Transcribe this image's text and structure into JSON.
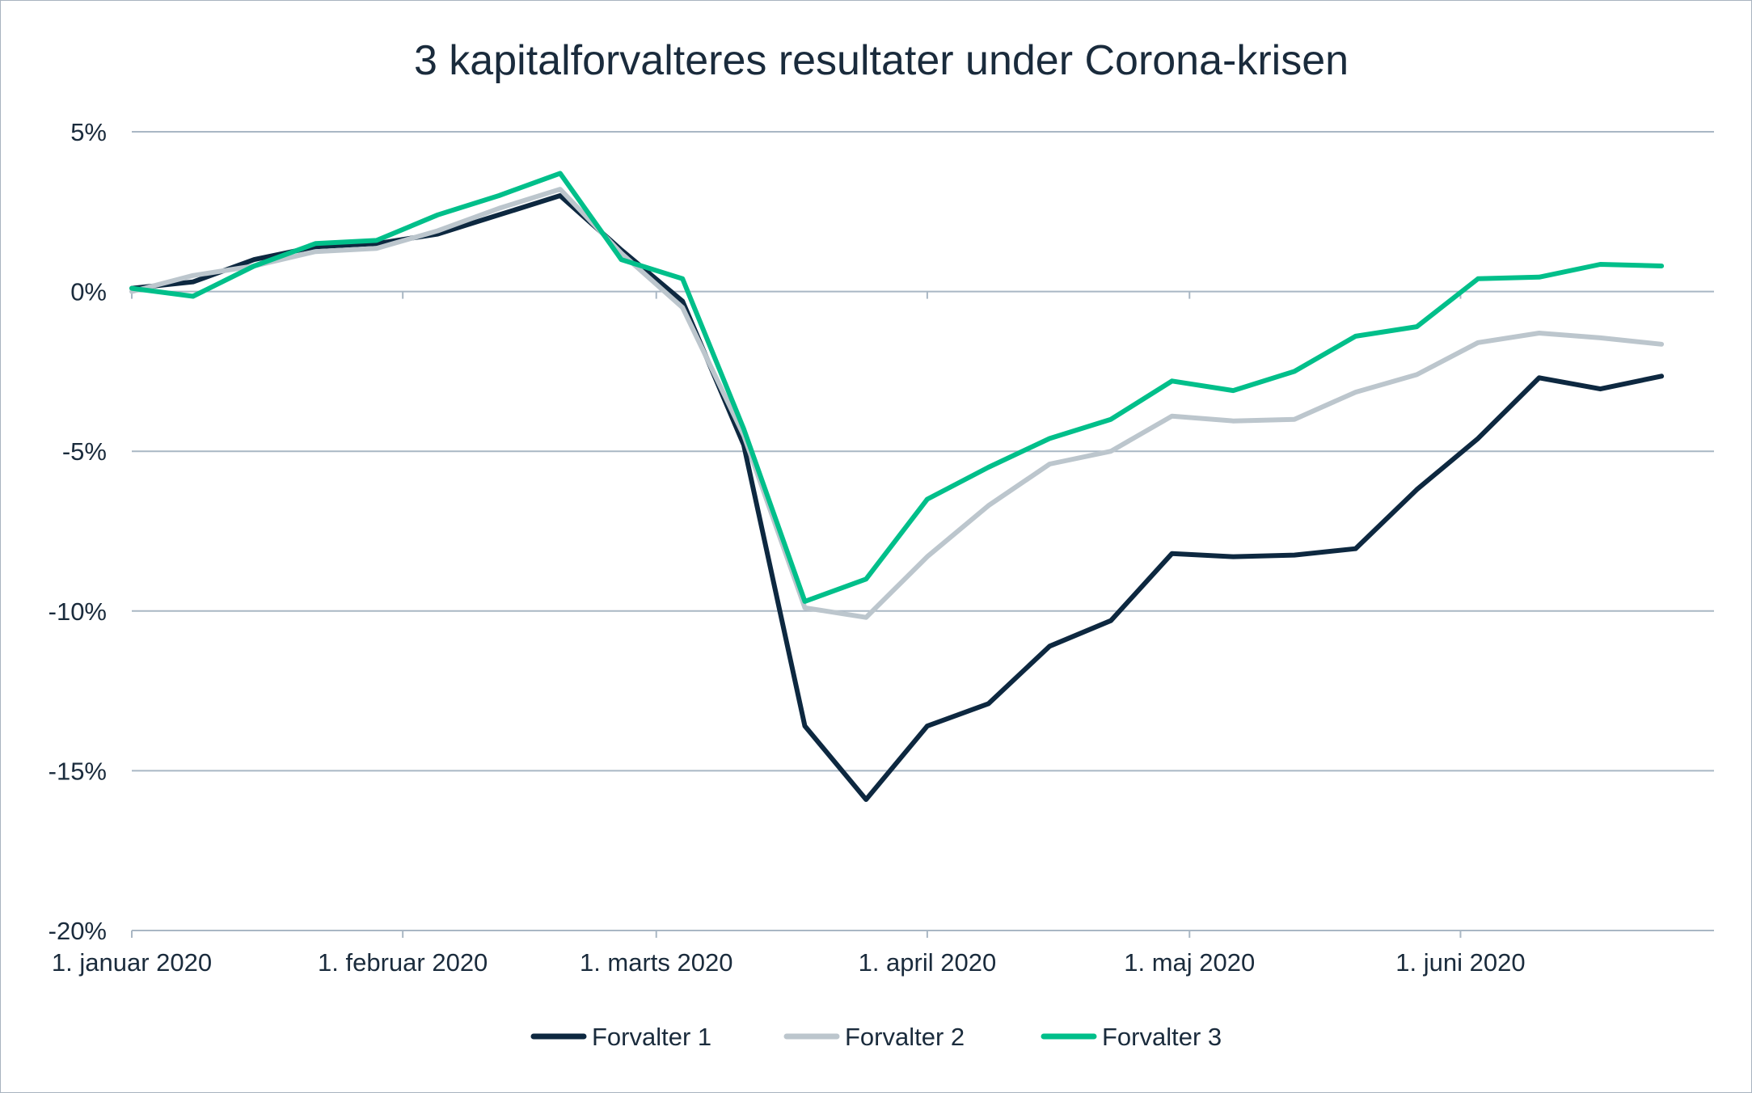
{
  "chart_data": {
    "type": "line",
    "title": "3 kapitalforvalteres resultater under Corona-krisen",
    "xlabel": "",
    "ylabel": "",
    "ylim": [
      -20,
      5
    ],
    "y_ticks": [
      5,
      0,
      -5,
      -10,
      -15,
      -20
    ],
    "y_tick_labels": [
      "5%",
      "0%",
      "-5%",
      "-10%",
      "-15%",
      "-20%"
    ],
    "x_range": [
      "2020-01-01",
      "2020-06-30"
    ],
    "x_ticks": [
      "2020-01-01",
      "2020-02-01",
      "2020-03-01",
      "2020-04-01",
      "2020-05-01",
      "2020-06-01"
    ],
    "x_tick_labels": [
      "1. januar 2020",
      "1. februar 2020",
      "1. marts 2020",
      "1. april 2020",
      "1. maj 2020",
      "1. juni 2020"
    ],
    "x": [
      "2020-01-01",
      "2020-01-08",
      "2020-01-15",
      "2020-01-22",
      "2020-01-29",
      "2020-02-05",
      "2020-02-12",
      "2020-02-19",
      "2020-02-26",
      "2020-03-04",
      "2020-03-11",
      "2020-03-18",
      "2020-03-25",
      "2020-04-01",
      "2020-04-08",
      "2020-04-15",
      "2020-04-22",
      "2020-04-29",
      "2020-05-06",
      "2020-05-13",
      "2020-05-20",
      "2020-05-27",
      "2020-06-03",
      "2020-06-10",
      "2020-06-17",
      "2020-06-24",
      "2020-06-30"
    ],
    "grid": true,
    "legend": "bottom",
    "series": [
      {
        "name": "Forvalter 1",
        "color": "#0d2840",
        "values": [
          0.1,
          0.3,
          1.0,
          1.4,
          1.5,
          1.8,
          2.4,
          3.0,
          1.3,
          -0.3,
          -4.8,
          -13.6,
          -15.9,
          -13.6,
          -12.9,
          -11.1,
          -10.3,
          -8.2,
          -8.3,
          -8.25,
          -8.05,
          -6.2,
          -4.6,
          -2.7,
          -3.05,
          -2.65,
          null
        ],
        "values_note": ""
      },
      {
        "name": "Forvalter 2",
        "color": "#bcc6cd",
        "values": [
          0.0,
          0.5,
          0.8,
          1.25,
          1.35,
          1.9,
          2.6,
          3.2,
          1.2,
          -0.5,
          -4.5,
          -9.9,
          -10.2,
          -8.3,
          -6.7,
          -5.4,
          -5.0,
          -3.9,
          -4.05,
          -4.0,
          -3.15,
          -2.6,
          -1.6,
          -1.3,
          -1.45,
          -1.65,
          null
        ]
      },
      {
        "name": "Forvalter 3",
        "color": "#00bf8a",
        "values": [
          0.1,
          -0.15,
          0.8,
          1.5,
          1.6,
          2.4,
          3.0,
          3.7,
          1.0,
          0.4,
          -4.3,
          -9.7,
          -9.0,
          -6.5,
          -5.5,
          -4.6,
          -4.0,
          -2.8,
          -3.1,
          -2.5,
          -1.4,
          -1.1,
          0.4,
          0.45,
          0.85,
          0.8,
          null
        ]
      }
    ]
  }
}
